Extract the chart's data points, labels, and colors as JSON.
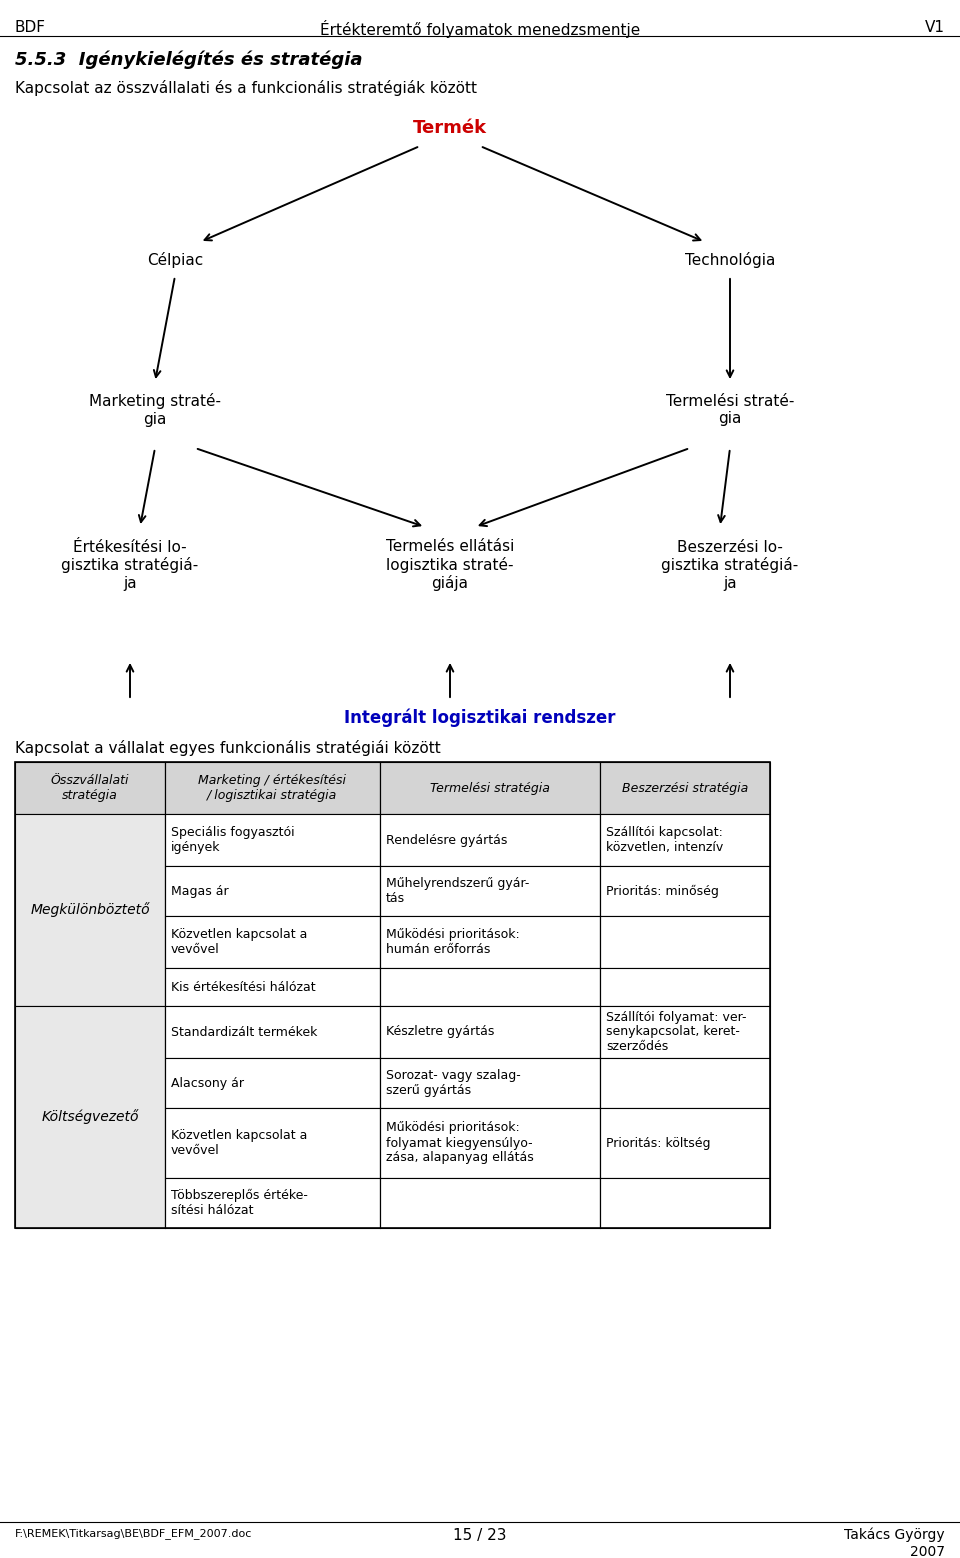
{
  "header_left": "BDF",
  "header_center": "Értékteremtő folyamatok menedzsmentje",
  "header_right": "V1",
  "section_title": "5.5.3  Igénykielégítés és stratégia",
  "subtitle": "Kapcsolat az összvállalati és a funkcionális stratégiák között",
  "termek_label": "Termék",
  "termek_color": "#cc0000",
  "node_celpiac": "Célpiac",
  "node_technologia": "Technológia",
  "node_marketing": "Marketing straté-\ngia",
  "node_termelesi": "Termelési straté-\ngia",
  "node_ertekesitesi": "Értékesítési lo-\ngisztika stratégiá-\nja",
  "node_termeles_ellat": "Termelés ellátási\nlogisztika straté-\ngiája",
  "node_beszerzes": "Beszerzési lo-\ngisztika stratégiá-\nja",
  "integralt_label": "Integrált logisztikai rendszer",
  "integralt_color": "#0000bb",
  "kapcsolat_label": "Kapcsolat a vállalat egyes funkcionális stratégiái között",
  "table_headers": [
    "Összvállalati\nstratégia",
    "Marketing / értékesítési\n/ logisztikai stratégia",
    "Termelési stratégia",
    "Beszerzési stratégia"
  ],
  "table_col1_groups": [
    {
      "label": "Megkülönböztető",
      "rows": 4
    },
    {
      "label": "Költségvezető",
      "rows": 4
    }
  ],
  "table_data": [
    [
      "Speciális fogyasztói\nigények",
      "Rendelésre gyártás",
      "Szállítói kapcsolat:\nközvetlen, intenzív"
    ],
    [
      "Magas ár",
      "Műhelyrendszerű gyár-\ntás",
      "Prioritás: minőség"
    ],
    [
      "Közvetlen kapcsolat a\nvevővel",
      "Működési prioritások:\nhumán erőforrás",
      ""
    ],
    [
      "Kis értékesítési hálózat",
      "",
      ""
    ],
    [
      "Standardizált termékek",
      "Készletre gyártás",
      "Szállítói folyamat: ver-\nsenykapcsolat, keret-\nszerződés"
    ],
    [
      "Alacsony ár",
      "Sorozat- vagy szalag-\nszerű gyártás",
      ""
    ],
    [
      "Közvetlen kapcsolat a\nvevővel",
      "Működési prioritások:\nfolyamat kiegyensúlyo-\nzása, alapanyag ellátás",
      "Prioritás: költség"
    ],
    [
      "Többszereplős értéke-\nsítési hálózat",
      "",
      ""
    ]
  ],
  "footer_left": "F:\\REMEK\\Titkarsag\\BE\\BDF_EFM_2007.doc",
  "footer_center": "15 / 23",
  "footer_right": "Takács György\n2007",
  "bg_color": "#ffffff",
  "text_color": "#000000",
  "table_header_bg": "#d4d4d4",
  "table_col1_bg": "#e8e8e8"
}
